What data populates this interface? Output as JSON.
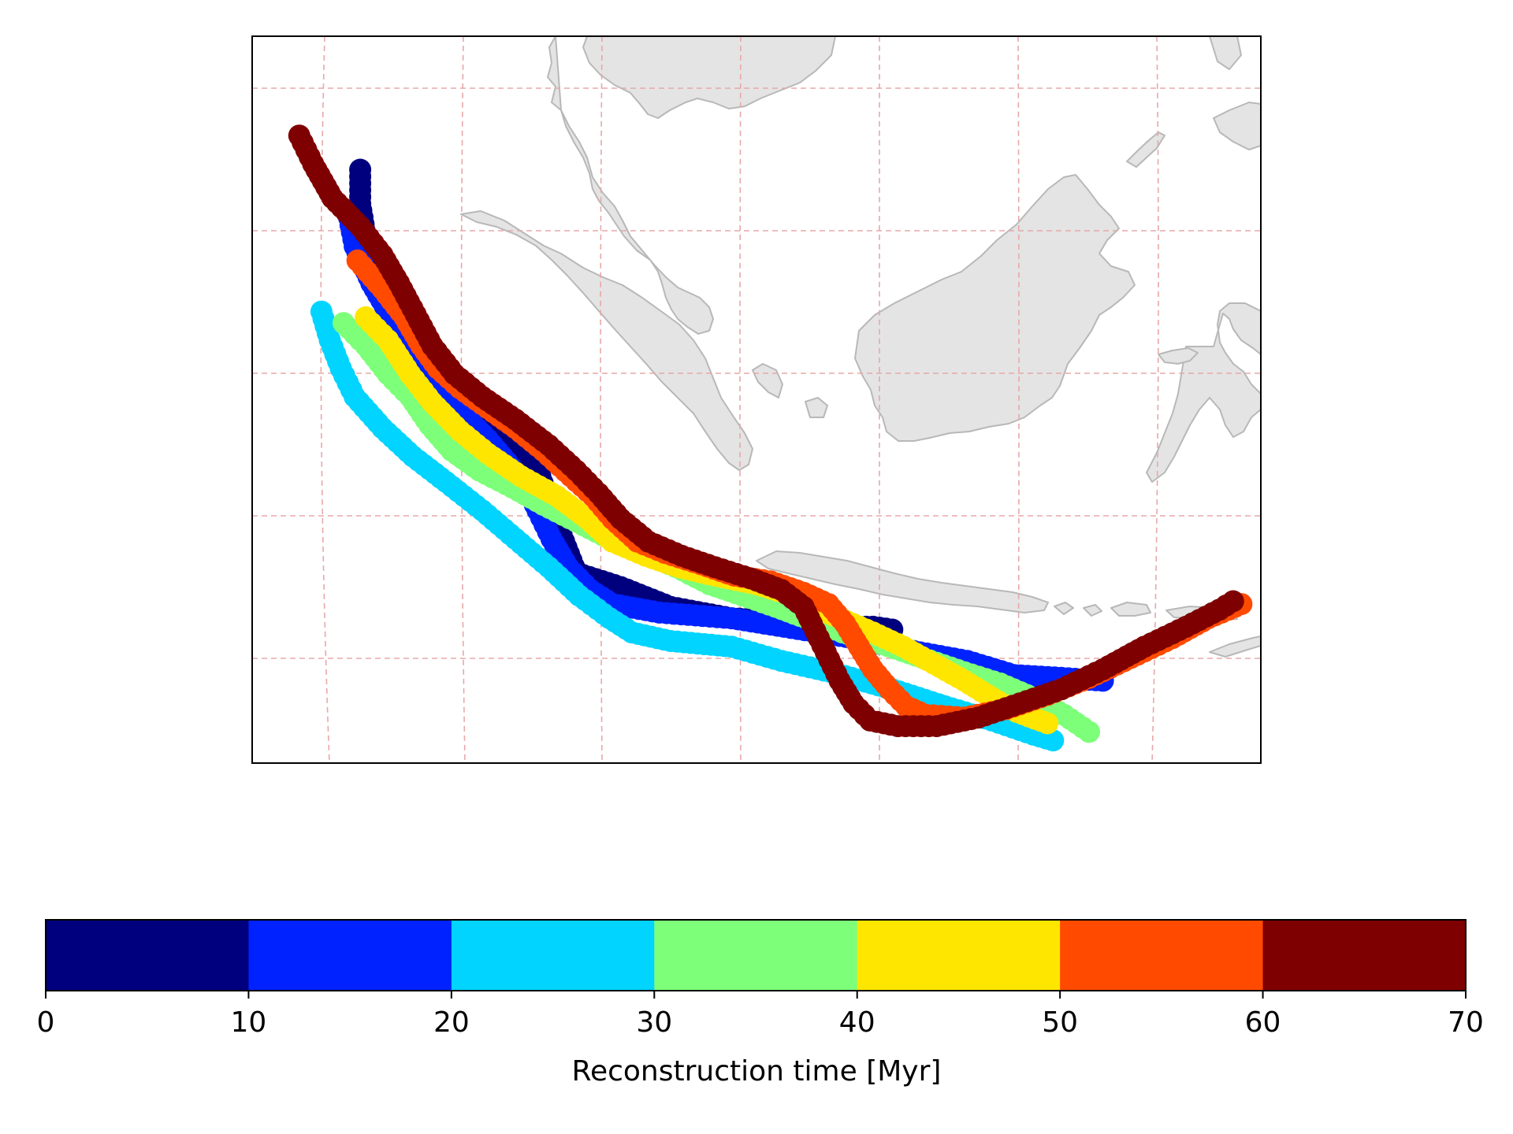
{
  "map": {
    "land_color": "#e4e4e4",
    "coast_color": "#b8b8b8",
    "grid_color": "#e8a8a8",
    "frame_color": "#000000"
  },
  "series": [
    {
      "time_myr": 5,
      "color": "#00007f",
      "points": [
        [
          95.2,
          7.0
        ],
        [
          95.2,
          5.8
        ],
        [
          95.4,
          4.6
        ],
        [
          95.7,
          3.8
        ],
        [
          96.0,
          3.0
        ],
        [
          96.4,
          2.0
        ],
        [
          97.0,
          1.1
        ],
        [
          97.6,
          0.2
        ],
        [
          98.6,
          -0.8
        ],
        [
          99.5,
          -1.5
        ],
        [
          100.3,
          -2.2
        ],
        [
          101.2,
          -3.2
        ],
        [
          101.7,
          -3.8
        ],
        [
          102.2,
          -5.2
        ],
        [
          103.0,
          -7.2
        ],
        [
          104.6,
          -7.7
        ],
        [
          106.4,
          -8.4
        ],
        [
          108.6,
          -8.8
        ],
        [
          110.5,
          -8.9
        ],
        [
          112.0,
          -9.1
        ],
        [
          113.7,
          -9.1
        ],
        [
          114.4,
          -9.2
        ]
      ]
    },
    {
      "time_myr": 15,
      "color": "#0022ff",
      "points": [
        [
          94.8,
          5.3
        ],
        [
          95.0,
          4.3
        ],
        [
          95.6,
          3.0
        ],
        [
          96.2,
          2.0
        ],
        [
          96.8,
          1.0
        ],
        [
          97.4,
          0.2
        ],
        [
          97.9,
          -0.8
        ],
        [
          98.9,
          -1.6
        ],
        [
          99.8,
          -2.5
        ],
        [
          100.5,
          -3.3
        ],
        [
          101.2,
          -4.2
        ],
        [
          101.6,
          -5.0
        ],
        [
          102.1,
          -6.0
        ],
        [
          102.7,
          -7.0
        ],
        [
          103.5,
          -7.8
        ],
        [
          104.3,
          -8.3
        ],
        [
          106.0,
          -8.6
        ],
        [
          108.6,
          -8.8
        ],
        [
          110.5,
          -9.1
        ],
        [
          113.0,
          -9.5
        ],
        [
          115.4,
          -10.0
        ],
        [
          117.1,
          -10.3
        ],
        [
          118.8,
          -10.8
        ],
        [
          120.5,
          -10.9
        ],
        [
          122.0,
          -11.0
        ]
      ]
    },
    {
      "time_myr": 25,
      "color": "#00d4ff",
      "points": [
        [
          93.8,
          2.0
        ],
        [
          94.1,
          1.0
        ],
        [
          94.5,
          0.0
        ],
        [
          95.0,
          -1.0
        ],
        [
          96.0,
          -2.1
        ],
        [
          97.1,
          -3.1
        ],
        [
          98.3,
          -4.0
        ],
        [
          99.6,
          -5.0
        ],
        [
          100.8,
          -6.0
        ],
        [
          102.0,
          -7.0
        ],
        [
          103.1,
          -8.0
        ],
        [
          104.2,
          -8.8
        ],
        [
          105.0,
          -9.3
        ],
        [
          106.4,
          -9.6
        ],
        [
          108.6,
          -9.8
        ],
        [
          110.4,
          -10.3
        ],
        [
          112.2,
          -10.7
        ],
        [
          114.4,
          -11.3
        ],
        [
          116.3,
          -11.9
        ],
        [
          118.0,
          -12.4
        ],
        [
          119.5,
          -12.9
        ],
        [
          120.2,
          -13.1
        ]
      ]
    },
    {
      "time_myr": 35,
      "color": "#7dff7a",
      "points": [
        [
          94.6,
          1.6
        ],
        [
          95.4,
          0.8
        ],
        [
          96.2,
          -0.2
        ],
        [
          97.0,
          -1.0
        ],
        [
          97.7,
          -2.0
        ],
        [
          98.5,
          -2.9
        ],
        [
          99.5,
          -3.6
        ],
        [
          100.7,
          -4.2
        ],
        [
          101.8,
          -4.8
        ],
        [
          103.0,
          -5.4
        ],
        [
          104.2,
          -6.0
        ],
        [
          105.4,
          -6.5
        ],
        [
          106.6,
          -7.0
        ],
        [
          107.8,
          -7.6
        ],
        [
          109.0,
          -8.0
        ],
        [
          110.2,
          -8.4
        ],
        [
          111.3,
          -8.8
        ],
        [
          112.6,
          -9.3
        ],
        [
          114.0,
          -9.7
        ],
        [
          115.5,
          -10.2
        ],
        [
          117.0,
          -10.7
        ],
        [
          118.3,
          -11.1
        ],
        [
          119.5,
          -11.6
        ],
        [
          120.6,
          -12.2
        ],
        [
          121.5,
          -12.8
        ]
      ]
    },
    {
      "time_myr": 45,
      "color": "#ffe600",
      "points": [
        [
          95.4,
          1.8
        ],
        [
          96.2,
          1.0
        ],
        [
          97.0,
          -0.2
        ],
        [
          97.8,
          -1.2
        ],
        [
          98.8,
          -2.2
        ],
        [
          99.8,
          -3.0
        ],
        [
          101.0,
          -3.8
        ],
        [
          102.3,
          -4.5
        ],
        [
          103.4,
          -5.3
        ],
        [
          104.3,
          -6.1
        ],
        [
          105.5,
          -6.6
        ],
        [
          106.7,
          -7.0
        ],
        [
          108.0,
          -7.3
        ],
        [
          109.5,
          -7.6
        ],
        [
          110.8,
          -8.0
        ],
        [
          111.6,
          -8.4
        ],
        [
          112.5,
          -8.8
        ],
        [
          113.7,
          -9.3
        ],
        [
          114.8,
          -9.8
        ],
        [
          115.9,
          -10.4
        ],
        [
          117.0,
          -11.0
        ],
        [
          118.0,
          -11.6
        ],
        [
          118.9,
          -12.1
        ],
        [
          120.0,
          -12.5
        ]
      ]
    },
    {
      "time_myr": 55,
      "color": "#ff4a00",
      "points": [
        [
          95.1,
          3.8
        ],
        [
          96.0,
          2.8
        ],
        [
          96.8,
          1.8
        ],
        [
          97.4,
          0.8
        ],
        [
          98.0,
          0.0
        ],
        [
          98.8,
          -0.7
        ],
        [
          99.8,
          -1.4
        ],
        [
          100.8,
          -2.1
        ],
        [
          101.8,
          -2.9
        ],
        [
          102.8,
          -3.8
        ],
        [
          103.6,
          -4.5
        ],
        [
          104.3,
          -5.3
        ],
        [
          105.2,
          -6.1
        ],
        [
          106.2,
          -6.5
        ],
        [
          107.5,
          -6.9
        ],
        [
          108.7,
          -7.3
        ],
        [
          110.0,
          -7.5
        ],
        [
          111.2,
          -7.9
        ],
        [
          112.1,
          -8.3
        ],
        [
          112.7,
          -9.0
        ],
        [
          113.2,
          -9.8
        ],
        [
          113.7,
          -10.6
        ],
        [
          114.3,
          -11.3
        ],
        [
          114.9,
          -11.9
        ],
        [
          115.6,
          -12.2
        ],
        [
          117.0,
          -12.3
        ],
        [
          118.5,
          -12.0
        ],
        [
          120.0,
          -11.5
        ],
        [
          121.5,
          -10.9
        ],
        [
          123.0,
          -10.2
        ],
        [
          124.5,
          -9.5
        ],
        [
          125.8,
          -8.8
        ],
        [
          127.0,
          -8.3
        ]
      ]
    },
    {
      "time_myr": 65,
      "color": "#7f0000",
      "points": [
        [
          93.0,
          8.2
        ],
        [
          93.5,
          7.2
        ],
        [
          94.2,
          6.0
        ],
        [
          95.2,
          5.0
        ],
        [
          96.0,
          4.0
        ],
        [
          96.6,
          3.0
        ],
        [
          97.2,
          1.9
        ],
        [
          97.8,
          0.8
        ],
        [
          98.6,
          -0.2
        ],
        [
          99.6,
          -1.0
        ],
        [
          100.8,
          -1.8
        ],
        [
          102.0,
          -2.7
        ],
        [
          103.0,
          -3.6
        ],
        [
          103.8,
          -4.4
        ],
        [
          104.6,
          -5.3
        ],
        [
          105.6,
          -6.1
        ],
        [
          106.8,
          -6.6
        ],
        [
          108.0,
          -7.0
        ],
        [
          109.3,
          -7.4
        ],
        [
          110.4,
          -7.8
        ],
        [
          111.2,
          -8.4
        ],
        [
          111.5,
          -9.0
        ],
        [
          112.0,
          -10.0
        ],
        [
          112.5,
          -11.0
        ],
        [
          113.0,
          -11.8
        ],
        [
          113.6,
          -12.4
        ],
        [
          114.6,
          -12.6
        ],
        [
          116.0,
          -12.6
        ],
        [
          117.5,
          -12.3
        ],
        [
          119.0,
          -11.8
        ],
        [
          120.5,
          -11.3
        ],
        [
          122.0,
          -10.6
        ],
        [
          123.5,
          -9.8
        ],
        [
          125.0,
          -9.1
        ],
        [
          126.2,
          -8.5
        ],
        [
          126.7,
          -8.2
        ]
      ]
    }
  ],
  "colorbar": {
    "label": "Reconstruction time [Myr]",
    "colors": [
      "#00007f",
      "#0022ff",
      "#00d4ff",
      "#7dff7a",
      "#ffe600",
      "#ff4a00",
      "#7f0000"
    ],
    "ticks": [
      "0",
      "10",
      "20",
      "30",
      "40",
      "50",
      "60",
      "70"
    ]
  }
}
